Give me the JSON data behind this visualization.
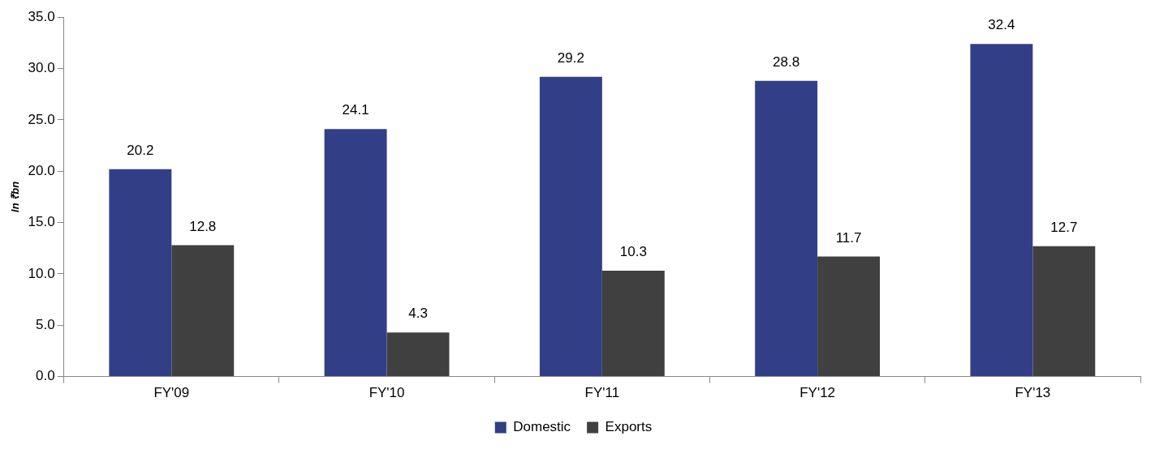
{
  "chart_data": {
    "type": "bar",
    "ylabel": "In ₹bn",
    "categories": [
      "FY'09",
      "FY'10",
      "FY'11",
      "FY'12",
      "FY'13"
    ],
    "series": [
      {
        "name": "Domestic",
        "color": "#323f87",
        "values": [
          20.2,
          24.1,
          29.2,
          28.8,
          32.4
        ]
      },
      {
        "name": "Exports",
        "color": "#404040",
        "values": [
          12.8,
          4.3,
          10.3,
          11.7,
          12.7
        ]
      }
    ],
    "ylim": [
      0,
      35
    ],
    "yticks": [
      {
        "value": 0,
        "label": "0.0"
      },
      {
        "value": 5,
        "label": "5.0"
      },
      {
        "value": 10,
        "label": "10.0"
      },
      {
        "value": 15,
        "label": "15.0"
      },
      {
        "value": 20,
        "label": "20.0"
      },
      {
        "value": 25,
        "label": "25.0"
      },
      {
        "value": 30,
        "label": "30.0"
      },
      {
        "value": 35,
        "label": "35.0"
      }
    ],
    "grid": false,
    "legend": "bottom",
    "data_labels": true
  }
}
